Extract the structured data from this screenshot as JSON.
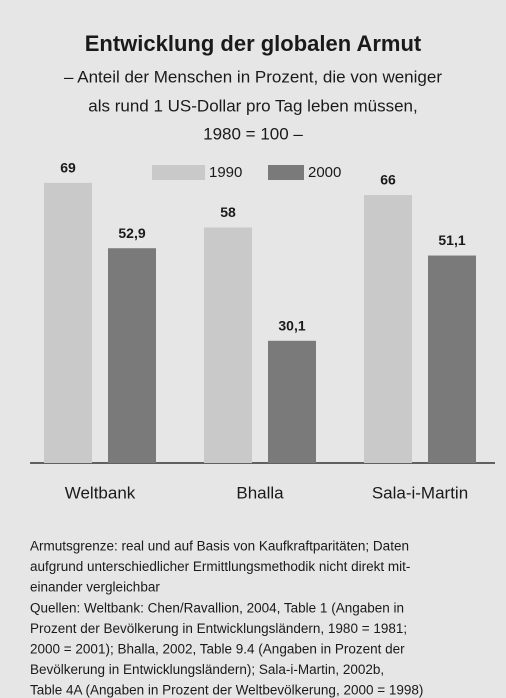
{
  "chart_data": {
    "type": "bar",
    "title": "Entwicklung der globalen Armut",
    "subtitle": [
      "– Anteil der Menschen in Prozent, die von weniger",
      "als rund 1 US-Dollar pro Tag leben müssen,",
      "1980 = 100 –"
    ],
    "categories": [
      "Weltbank",
      "Bhalla",
      "Sala-i-Martin"
    ],
    "series": [
      {
        "name": "1990",
        "color": "#c9c9c9",
        "values": [
          69,
          58,
          66
        ],
        "value_labels": [
          "69",
          "58",
          "66"
        ]
      },
      {
        "name": "2000",
        "color": "#7a7a7a",
        "values": [
          52.9,
          30.1,
          51.1
        ],
        "value_labels": [
          "52,9",
          "30,1",
          "51,1"
        ]
      }
    ],
    "ylim": [
      0,
      100
    ],
    "note": [
      "Armutsgrenze: real und auf Basis von Kaufkraftparitäten; Daten",
      "aufgrund unterschiedlicher Ermittlungsmethodik nicht direkt mit-",
      "einander vergleichbar"
    ],
    "source": [
      "Quellen: Weltbank: Chen/Ravallion, 2004, Table 1 (Angaben in",
      "Prozent der Bevölkerung in Entwicklungsländern, 1980 = 1981;",
      "2000 = 2001); Bhalla, 2002, Table 9.4 (Angaben in Prozent der",
      "Bevölkerung in Entwicklungsländern); Sala-i-Martin, 2002b,",
      "Table 4A (Angaben in Prozent der Weltbevölkerung, 2000 = 1998)"
    ]
  }
}
